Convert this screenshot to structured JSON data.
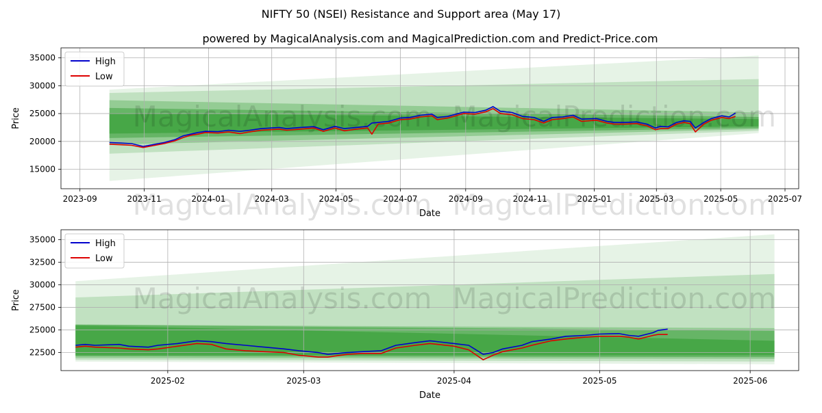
{
  "title": "NIFTY 50 (NSEI) Resistance and Support area (May 17)",
  "subtitle": "powered by MagicalAnalysis.com and MagicalPrediction.com and Predict-Price.com",
  "watermarks": [
    "MagicalAnalysis.com",
    "MagicalPrediction.com"
  ],
  "colors": {
    "high": "#0000cc",
    "low": "#dd0000",
    "band": "#2e9a2e"
  },
  "chart_data": [
    {
      "type": "line",
      "xlabel": "Date",
      "ylabel": "Price",
      "legend_position": "top-left",
      "grid": true,
      "x_ticks": [
        "2023-09",
        "2023-11",
        "2024-01",
        "2024-03",
        "2024-05",
        "2024-07",
        "2024-09",
        "2024-11",
        "2025-01",
        "2025-03",
        "2025-05",
        "2025-07"
      ],
      "y_ticks": [
        "15000",
        "20000",
        "25000",
        "30000",
        "35000"
      ],
      "xlim": [
        "2023-08-14",
        "2025-07-14"
      ],
      "ylim": [
        11500,
        36800
      ],
      "series": [
        {
          "name": "High",
          "x": [
            "2023-09-29",
            "2023-10-10",
            "2023-10-20",
            "2023-10-31",
            "2023-11-10",
            "2023-11-20",
            "2023-11-30",
            "2023-12-08",
            "2023-12-15",
            "2023-12-22",
            "2023-12-29",
            "2024-01-10",
            "2024-01-20",
            "2024-01-31",
            "2024-02-09",
            "2024-02-20",
            "2024-02-29",
            "2024-03-08",
            "2024-03-15",
            "2024-03-28",
            "2024-04-10",
            "2024-04-19",
            "2024-04-30",
            "2024-05-09",
            "2024-05-20",
            "2024-05-31",
            "2024-06-04",
            "2024-06-10",
            "2024-06-20",
            "2024-07-01",
            "2024-07-10",
            "2024-07-20",
            "2024-07-31",
            "2024-08-05",
            "2024-08-15",
            "2024-08-30",
            "2024-09-10",
            "2024-09-20",
            "2024-09-27",
            "2024-10-04",
            "2024-10-15",
            "2024-10-25",
            "2024-11-05",
            "2024-11-14",
            "2024-11-22",
            "2024-12-02",
            "2024-12-12",
            "2024-12-20",
            "2025-01-03",
            "2025-01-13",
            "2025-01-20",
            "2025-01-31",
            "2025-02-10",
            "2025-02-20",
            "2025-02-28",
            "2025-03-05",
            "2025-03-12",
            "2025-03-20",
            "2025-03-27",
            "2025-04-02",
            "2025-04-07",
            "2025-04-15",
            "2025-04-22",
            "2025-05-02",
            "2025-05-09",
            "2025-05-15"
          ],
          "values": [
            19800,
            19700,
            19600,
            19100,
            19450,
            19800,
            20300,
            21000,
            21300,
            21600,
            21800,
            21750,
            22000,
            21800,
            22000,
            22300,
            22400,
            22500,
            22300,
            22500,
            22650,
            22100,
            22700,
            22300,
            22500,
            22700,
            23300,
            23400,
            23600,
            24200,
            24300,
            24700,
            24900,
            24300,
            24500,
            25250,
            25200,
            25600,
            26250,
            25400,
            25200,
            24500,
            24300,
            23600,
            24300,
            24400,
            24700,
            24000,
            24100,
            23600,
            23400,
            23400,
            23500,
            23100,
            22400,
            22700,
            22600,
            23400,
            23700,
            23600,
            22400,
            23400,
            24100,
            24600,
            24400,
            25100
          ]
        },
        {
          "name": "Low",
          "x": [
            "2023-09-29",
            "2023-10-10",
            "2023-10-20",
            "2023-10-31",
            "2023-11-10",
            "2023-11-20",
            "2023-11-30",
            "2023-12-08",
            "2023-12-15",
            "2023-12-22",
            "2023-12-29",
            "2024-01-10",
            "2024-01-20",
            "2024-01-31",
            "2024-02-09",
            "2024-02-20",
            "2024-02-29",
            "2024-03-08",
            "2024-03-15",
            "2024-03-28",
            "2024-04-10",
            "2024-04-19",
            "2024-04-30",
            "2024-05-09",
            "2024-05-20",
            "2024-05-31",
            "2024-06-04",
            "2024-06-10",
            "2024-06-20",
            "2024-07-01",
            "2024-07-10",
            "2024-07-20",
            "2024-07-31",
            "2024-08-05",
            "2024-08-15",
            "2024-08-30",
            "2024-09-10",
            "2024-09-20",
            "2024-09-27",
            "2024-10-04",
            "2024-10-15",
            "2024-10-25",
            "2024-11-05",
            "2024-11-14",
            "2024-11-22",
            "2024-12-02",
            "2024-12-12",
            "2024-12-20",
            "2025-01-03",
            "2025-01-13",
            "2025-01-20",
            "2025-01-31",
            "2025-02-10",
            "2025-02-20",
            "2025-02-28",
            "2025-03-05",
            "2025-03-12",
            "2025-03-20",
            "2025-03-27",
            "2025-04-02",
            "2025-04-07",
            "2025-04-15",
            "2025-04-22",
            "2025-05-02",
            "2025-05-09",
            "2025-05-15"
          ],
          "values": [
            19500,
            19400,
            19300,
            18900,
            19250,
            19600,
            20100,
            20700,
            21100,
            21300,
            21600,
            21500,
            21700,
            21400,
            21700,
            22000,
            22100,
            22200,
            22000,
            22200,
            22400,
            21800,
            22400,
            21900,
            22200,
            22400,
            21300,
            23100,
            23300,
            23900,
            24000,
            24400,
            24600,
            23900,
            24200,
            25000,
            24900,
            25300,
            25900,
            25000,
            24800,
            24100,
            23900,
            23300,
            23900,
            24100,
            24400,
            23600,
            23800,
            23300,
            23100,
            23100,
            23200,
            22800,
            22100,
            22300,
            22300,
            23100,
            23400,
            23200,
            21700,
            23100,
            23800,
            24300,
            24100,
            24500
          ]
        }
      ]
    },
    {
      "type": "line",
      "xlabel": "Date",
      "ylabel": "Price",
      "legend_position": "top-left",
      "grid": true,
      "x_ticks": [
        "2025-02",
        "2025-03",
        "2025-04",
        "2025-05",
        "2025-06"
      ],
      "y_ticks": [
        "22500",
        "25000",
        "27500",
        "30000",
        "32500",
        "35000"
      ],
      "xlim": [
        "2025-01-10",
        "2025-06-11"
      ],
      "ylim": [
        20500,
        36100
      ],
      "series": [
        {
          "name": "High",
          "x": [
            "2025-01-13",
            "2025-01-15",
            "2025-01-17",
            "2025-01-22",
            "2025-01-24",
            "2025-01-28",
            "2025-01-30",
            "2025-02-03",
            "2025-02-07",
            "2025-02-10",
            "2025-02-13",
            "2025-02-17",
            "2025-02-21",
            "2025-02-25",
            "2025-02-28",
            "2025-03-04",
            "2025-03-06",
            "2025-03-10",
            "2025-03-13",
            "2025-03-17",
            "2025-03-20",
            "2025-03-24",
            "2025-03-27",
            "2025-04-01",
            "2025-04-04",
            "2025-04-07",
            "2025-04-09",
            "2025-04-11",
            "2025-04-15",
            "2025-04-17",
            "2025-04-21",
            "2025-04-24",
            "2025-04-28",
            "2025-05-01",
            "2025-05-05",
            "2025-05-07",
            "2025-05-09",
            "2025-05-12",
            "2025-05-13",
            "2025-05-15"
          ],
          "values": [
            23300,
            23400,
            23300,
            23400,
            23200,
            23100,
            23300,
            23500,
            23800,
            23700,
            23500,
            23300,
            23100,
            22900,
            22700,
            22500,
            22300,
            22500,
            22600,
            22700,
            23300,
            23600,
            23800,
            23500,
            23300,
            22300,
            22500,
            22900,
            23300,
            23700,
            24000,
            24300,
            24400,
            24550,
            24600,
            24400,
            24300,
            24700,
            24950,
            25100
          ]
        },
        {
          "name": "Low",
          "x": [
            "2025-01-13",
            "2025-01-15",
            "2025-01-17",
            "2025-01-22",
            "2025-01-24",
            "2025-01-28",
            "2025-01-30",
            "2025-02-03",
            "2025-02-07",
            "2025-02-10",
            "2025-02-13",
            "2025-02-17",
            "2025-02-21",
            "2025-02-25",
            "2025-02-28",
            "2025-03-04",
            "2025-03-06",
            "2025-03-10",
            "2025-03-13",
            "2025-03-17",
            "2025-03-20",
            "2025-03-24",
            "2025-03-27",
            "2025-04-01",
            "2025-04-04",
            "2025-04-07",
            "2025-04-09",
            "2025-04-11",
            "2025-04-15",
            "2025-04-17",
            "2025-04-21",
            "2025-04-24",
            "2025-04-28",
            "2025-05-01",
            "2025-05-05",
            "2025-05-07",
            "2025-05-09",
            "2025-05-12",
            "2025-05-13",
            "2025-05-15"
          ],
          "values": [
            23100,
            23200,
            23100,
            23000,
            22900,
            22800,
            22900,
            23200,
            23500,
            23400,
            22900,
            22700,
            22600,
            22500,
            22200,
            22000,
            22000,
            22300,
            22400,
            22400,
            23000,
            23300,
            23500,
            23200,
            22800,
            21700,
            22200,
            22600,
            23000,
            23300,
            23800,
            24000,
            24200,
            24300,
            24300,
            24200,
            24000,
            24400,
            24500,
            24500
          ]
        }
      ]
    }
  ],
  "bands": {
    "start": "2023-09-29",
    "forecast_end": "2025-06-06",
    "levels": [
      {
        "opacity": 0.12,
        "top": [
          29300,
          35400
        ],
        "bottom": [
          12900,
          21500
        ]
      },
      {
        "opacity": 0.2,
        "top": [
          28700,
          31200
        ],
        "bottom": [
          17800,
          21900
        ]
      },
      {
        "opacity": 0.3,
        "top": [
          27400,
          25200
        ],
        "bottom": [
          19400,
          22200
        ]
      },
      {
        "opacity": 0.45,
        "top": [
          26000,
          24400
        ],
        "bottom": [
          20600,
          22400
        ]
      },
      {
        "opacity": 0.55,
        "top": [
          25100,
          24000
        ],
        "bottom": [
          21400,
          22700
        ]
      }
    ]
  },
  "bands_bottom_chart": {
    "start": "2025-01-13",
    "forecast_end": "2025-06-06",
    "levels": [
      {
        "opacity": 0.12,
        "top": [
          30400,
          35600
        ],
        "bottom": [
          21500,
          21200
        ]
      },
      {
        "opacity": 0.2,
        "top": [
          28600,
          31200
        ],
        "bottom": [
          21700,
          21500
        ]
      },
      {
        "opacity": 0.3,
        "top": [
          25600,
          25200
        ],
        "bottom": [
          21900,
          21800
        ]
      },
      {
        "opacity": 0.45,
        "top": [
          25600,
          24900
        ],
        "bottom": [
          22100,
          22000
        ]
      },
      {
        "opacity": 0.55,
        "top": [
          25500,
          23800
        ],
        "bottom": [
          22200,
          22200
        ]
      }
    ]
  }
}
